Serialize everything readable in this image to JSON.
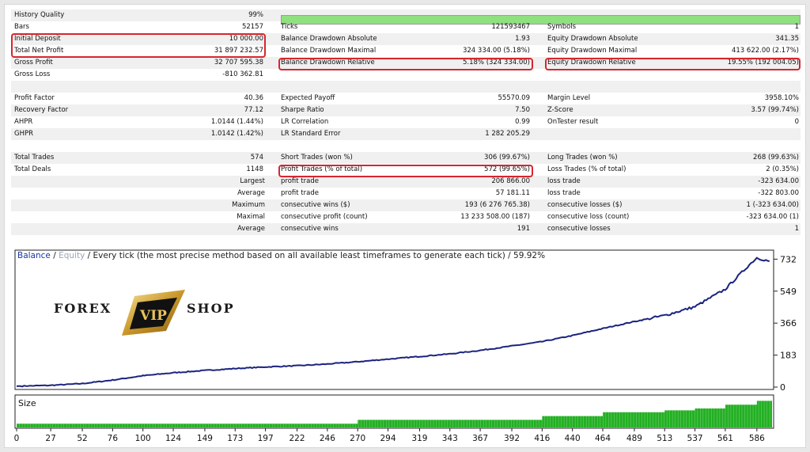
{
  "report": {
    "history_quality": {
      "label": "History Quality",
      "value": "99%"
    },
    "rows": [
      {
        "c1": [
          "Bars",
          "52157"
        ],
        "c2": [
          "Ticks",
          "121593467"
        ],
        "c3": [
          "Symbols",
          "1"
        ]
      },
      {
        "c1": [
          "Initial Deposit",
          "10 000.00"
        ],
        "c2": [
          "Balance Drawdown Absolute",
          "1.93"
        ],
        "c3": [
          "Equity Drawdown Absolute",
          "341.35"
        ]
      },
      {
        "c1": [
          "Total Net Profit",
          "31 897 232.57"
        ],
        "c2": [
          "Balance Drawdown Maximal",
          "324 334.00 (5.18%)"
        ],
        "c3": [
          "Equity Drawdown Maximal",
          "413 622.00 (2.17%)"
        ]
      },
      {
        "c1": [
          "Gross Profit",
          "32 707 595.38"
        ],
        "c2": [
          "Balance Drawdown Relative",
          "5.18% (324 334.00)"
        ],
        "c3": [
          "Equity Drawdown Relative",
          "19.55% (192 004.05)"
        ]
      },
      {
        "c1": [
          "Gross Loss",
          "-810 362.81"
        ],
        "c2": [
          "",
          ""
        ],
        "c3": [
          "",
          ""
        ]
      },
      {
        "c1": [
          "",
          ""
        ],
        "c2": [
          "",
          ""
        ],
        "c3": [
          "",
          ""
        ]
      },
      {
        "c1": [
          "Profit Factor",
          "40.36"
        ],
        "c2": [
          "Expected Payoff",
          "55570.09"
        ],
        "c3": [
          "Margin Level",
          "3958.10%"
        ]
      },
      {
        "c1": [
          "Recovery Factor",
          "77.12"
        ],
        "c2": [
          "Sharpe Ratio",
          "7.50"
        ],
        "c3": [
          "Z-Score",
          "3.57 (99.74%)"
        ]
      },
      {
        "c1": [
          "AHPR",
          "1.0144 (1.44%)"
        ],
        "c2": [
          "LR Correlation",
          "0.99"
        ],
        "c3": [
          "OnTester result",
          "0"
        ]
      },
      {
        "c1": [
          "GHPR",
          "1.0142 (1.42%)"
        ],
        "c2": [
          "LR Standard Error",
          "1 282 205.29"
        ],
        "c3": [
          "",
          ""
        ]
      },
      {
        "c1": [
          "",
          ""
        ],
        "c2": [
          "",
          ""
        ],
        "c3": [
          "",
          ""
        ]
      },
      {
        "c1": [
          "Total Trades",
          "574"
        ],
        "c2": [
          "Short Trades (won %)",
          "306 (99.67%)"
        ],
        "c3": [
          "Long Trades (won %)",
          "268 (99.63%)"
        ]
      },
      {
        "c1": [
          "Total Deals",
          "1148"
        ],
        "c2": [
          "Profit Trades (% of total)",
          "572 (99.65%)"
        ],
        "c3": [
          "Loss Trades (% of total)",
          "2 (0.35%)"
        ]
      },
      {
        "c1": [
          "Largest",
          ""
        ],
        "c2": [
          "profit trade",
          "206 866.00"
        ],
        "c3": [
          "loss trade",
          "-323 634.00"
        ]
      },
      {
        "c1": [
          "Average",
          ""
        ],
        "c2": [
          "profit trade",
          "57 181.11"
        ],
        "c3": [
          "loss trade",
          "-322 803.00"
        ]
      },
      {
        "c1": [
          "Maximum",
          ""
        ],
        "c2": [
          "consecutive wins ($)",
          "193 (6 276 765.38)"
        ],
        "c3": [
          "consecutive losses ($)",
          "1 (-323 634.00)"
        ]
      },
      {
        "c1": [
          "Maximal",
          ""
        ],
        "c2": [
          "consecutive profit (count)",
          "13 233 508.00 (187)"
        ],
        "c3": [
          "consecutive loss (count)",
          "-323 634.00 (1)"
        ]
      },
      {
        "c1": [
          "Average",
          ""
        ],
        "c2": [
          "consecutive wins",
          "191"
        ],
        "c3": [
          "consecutive losses",
          "1"
        ]
      }
    ]
  },
  "chart": {
    "title_balance": "Balance",
    "title_sep": " / ",
    "title_equity": "Equity",
    "title_rest": " / Every tick (the most precise method based on all available least timeframes to generate each tick) / 59.92%",
    "size_label": "Size"
  },
  "watermark": {
    "word1": "FOREX",
    "badge": "VIP",
    "word2": "SHOP"
  },
  "colors": {
    "balance": "#1b237f",
    "size": "#22b022",
    "quality": "#8fe07f",
    "highlight": "#d7262e"
  },
  "chart_data": {
    "type": "line",
    "title": "Balance / Equity / Every tick (the most precise method based on all available least timeframes to generate each tick) / 59.92%",
    "x_ticks": [
      0,
      27,
      52,
      76,
      100,
      124,
      149,
      173,
      197,
      222,
      246,
      270,
      294,
      319,
      343,
      367,
      392,
      416,
      440,
      464,
      489,
      513,
      537,
      561,
      586
    ],
    "y_ticks": [
      0,
      183,
      366,
      549,
      732
    ],
    "xlim": [
      0,
      598
    ],
    "ylim": [
      0,
      770
    ],
    "grid": false,
    "series": [
      {
        "name": "Balance",
        "x": [
          0,
          27,
          52,
          76,
          100,
          124,
          149,
          173,
          197,
          222,
          246,
          270,
          294,
          319,
          343,
          367,
          392,
          416,
          440,
          464,
          489,
          513,
          537,
          561,
          580,
          586,
          596
        ],
        "y": [
          5,
          10,
          20,
          40,
          65,
          82,
          95,
          106,
          115,
          122,
          132,
          145,
          160,
          175,
          190,
          210,
          235,
          260,
          295,
          335,
          375,
          410,
          460,
          560,
          700,
          740,
          720
        ]
      }
    ],
    "size_series": {
      "name": "Size",
      "x": [
        0,
        246,
        270,
        392,
        416,
        464,
        513,
        537,
        561,
        586,
        598
      ],
      "y": [
        1,
        1,
        2,
        2,
        3,
        4,
        4.5,
        5,
        6,
        7,
        7
      ]
    }
  }
}
